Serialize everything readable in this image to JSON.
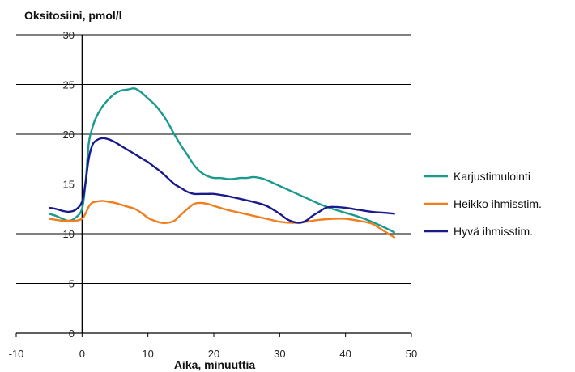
{
  "chart_data": {
    "type": "line",
    "title": "",
    "ylabel": "Oksitosiini, pmol/l",
    "xlabel": "Aika, minuuttia",
    "xlim": [
      -10,
      50
    ],
    "ylim": [
      0,
      30
    ],
    "xticks": [
      -10,
      0,
      10,
      20,
      30,
      40,
      50
    ],
    "yticks": [
      0,
      5,
      10,
      15,
      20,
      25,
      30
    ],
    "grid": "horizontal",
    "legend_position": "right",
    "series": [
      {
        "name": "Karjustimulointi",
        "color": "#1a9a8e",
        "x": [
          -5,
          -4,
          -3,
          -2,
          -1,
          0,
          0.5,
          1,
          1.5,
          2,
          3,
          4,
          5,
          6,
          7,
          8,
          9,
          10,
          11,
          12,
          13,
          14,
          15,
          16,
          17,
          18,
          19,
          20,
          21,
          22,
          23,
          24,
          25,
          26,
          27,
          28,
          29,
          30,
          32,
          34,
          36,
          38,
          40,
          42,
          44,
          46,
          47.5
        ],
        "y": [
          12,
          11.8,
          11.5,
          11.3,
          11.6,
          12.5,
          15,
          19,
          20.5,
          21.5,
          22.7,
          23.5,
          24.1,
          24.4,
          24.5,
          24.6,
          24.2,
          23.6,
          23,
          22.2,
          21.2,
          20,
          18.9,
          17.9,
          16.9,
          16.2,
          15.8,
          15.6,
          15.6,
          15.5,
          15.5,
          15.6,
          15.6,
          15.7,
          15.6,
          15.4,
          15.1,
          14.8,
          14.2,
          13.6,
          13.0,
          12.5,
          12.1,
          11.7,
          11.2,
          10.6,
          10.1
        ]
      },
      {
        "name": "Heikko ihmisstim.",
        "color": "#f07d1e",
        "x": [
          -5,
          -4,
          -3,
          -2,
          -1,
          0,
          0.5,
          1,
          1.5,
          2,
          3,
          4,
          5,
          6,
          7,
          8,
          9,
          10,
          11,
          12,
          13,
          14,
          15,
          16,
          17,
          18,
          19,
          20,
          22,
          24,
          26,
          28,
          30,
          32,
          34,
          36,
          38,
          40,
          42,
          44,
          46,
          47.5
        ],
        "y": [
          11.5,
          11.4,
          11.3,
          11.3,
          11.3,
          11.5,
          12,
          12.7,
          13.1,
          13.2,
          13.3,
          13.2,
          13.1,
          12.9,
          12.7,
          12.5,
          12.1,
          11.6,
          11.3,
          11.1,
          11.1,
          11.3,
          11.9,
          12.5,
          13,
          13.1,
          13,
          12.8,
          12.4,
          12.1,
          11.8,
          11.5,
          11.2,
          11.1,
          11.2,
          11.4,
          11.5,
          11.5,
          11.3,
          11.0,
          10.2,
          9.6
        ]
      },
      {
        "name": "Hyvä ihmisstim.",
        "color": "#1a1a8c",
        "x": [
          -5,
          -4,
          -3,
          -2,
          -1,
          0,
          0.5,
          1,
          1.5,
          2,
          3,
          4,
          5,
          6,
          7,
          8,
          9,
          10,
          11,
          12,
          13,
          14,
          15,
          16,
          17,
          18,
          19,
          20,
          21,
          22,
          24,
          26,
          28,
          30,
          31,
          32,
          33,
          34,
          35,
          36,
          37,
          38,
          40,
          42,
          44,
          46,
          47.5
        ],
        "y": [
          12.6,
          12.5,
          12.3,
          12.2,
          12.4,
          13.2,
          15,
          17.5,
          18.8,
          19.3,
          19.6,
          19.5,
          19.2,
          18.8,
          18.4,
          18.0,
          17.6,
          17.2,
          16.7,
          16.2,
          15.6,
          15.0,
          14.6,
          14.2,
          14.0,
          14.0,
          14.0,
          14.0,
          13.9,
          13.8,
          13.5,
          13.2,
          12.8,
          12.0,
          11.5,
          11.2,
          11.1,
          11.3,
          11.8,
          12.2,
          12.6,
          12.7,
          12.6,
          12.4,
          12.2,
          12.1,
          12.0
        ]
      }
    ]
  }
}
